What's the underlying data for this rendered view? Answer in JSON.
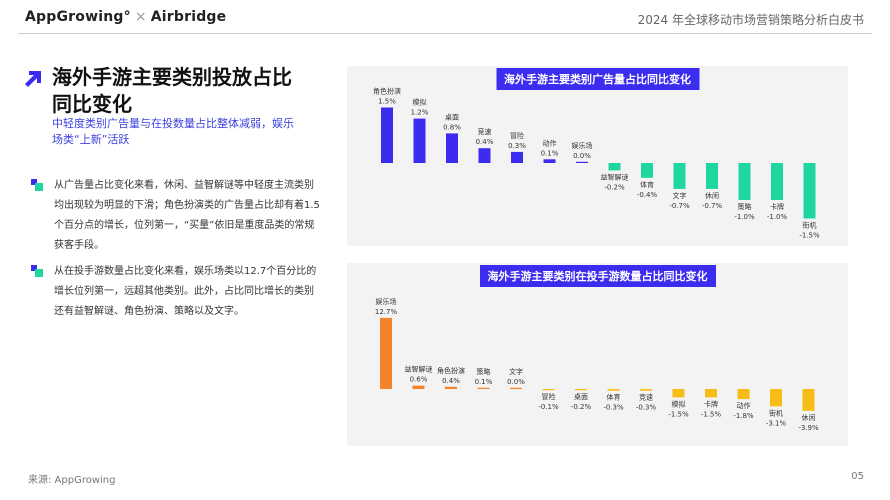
{
  "header": {
    "brand_left": "AppGrowing°",
    "brand_sep": "×",
    "brand_right": "Airbridge",
    "doc_title": "2024 年全球移动市场营销策略分析白皮书"
  },
  "section": {
    "title": "海外手游主要类别投放占比同比变化",
    "subtitle": "中轻度类别广告量与在投数量占比整体减弱，娱乐场类“上新”活跃"
  },
  "bullets": [
    {
      "text": "从广告量占比变化来看，休闲、益智解谜等中轻度主流类别均出现较为明显的下滑；角色扮演类的广告量占比却有着1.5个百分点的增长，位列第一，“买量”依旧是重度品类的常规获客手段。"
    },
    {
      "text": "从在投手游数量占比变化来看，娱乐场类以12.7个百分比的增长位列第一，远超其他类别。此外，占比同比增长的类别还有益智解谜、角色扮演、策略以及文字。"
    }
  ],
  "colors": {
    "accent": "#3b2cf0",
    "pos1": "#3b2cf0",
    "neg1": "#1dd6a0",
    "pos2": "#f0832b",
    "neg2": "#f5bd15",
    "panel_bg": "#f3f3f3"
  },
  "chart_data": [
    {
      "type": "bar",
      "title": "海外手游主要类别广告量占比同比变化",
      "categories": [
        "角色扮演",
        "模拟",
        "桌面",
        "竞速",
        "冒险",
        "动作",
        "娱乐场",
        "益智解谜",
        "体育",
        "文字",
        "休闲",
        "策略",
        "卡牌",
        "街机"
      ],
      "values": [
        1.5,
        1.2,
        0.8,
        0.4,
        0.3,
        0.1,
        0.0,
        -0.2,
        -0.4,
        -0.7,
        -0.7,
        -1.0,
        -1.0,
        -1.5
      ],
      "labels": [
        "1.5%",
        "1.2%",
        "0.8%",
        "0.4%",
        "0.3%",
        "0.1%",
        "0.0%",
        "-0.2%",
        "-0.4%",
        "-0.7%",
        "-0.7%",
        "-1.0%",
        "-1.0%",
        "-1.5%"
      ],
      "ylim": [
        -1.5,
        1.5
      ]
    },
    {
      "type": "bar",
      "title": "海外手游主要类别在投手游数量占比同比变化",
      "categories": [
        "娱乐场",
        "益智解谜",
        "角色扮演",
        "策略",
        "文字",
        "冒险",
        "桌面",
        "体育",
        "竞速",
        "模拟",
        "卡牌",
        "动作",
        "街机",
        "休闲"
      ],
      "values": [
        12.7,
        0.6,
        0.4,
        0.1,
        0.0,
        -0.1,
        -0.2,
        -0.3,
        -0.3,
        -1.5,
        -1.5,
        -1.8,
        -3.1,
        -3.9
      ],
      "labels": [
        "12.7%",
        "0.6%",
        "0.4%",
        "0.1%",
        "0.0%",
        "-0.1%",
        "-0.2%",
        "-0.3%",
        "-0.3%",
        "-1.5%",
        "-1.5%",
        "-1.8%",
        "-3.1%",
        "-3.9%"
      ],
      "ylim": [
        -3.9,
        12.7
      ]
    }
  ],
  "footer": {
    "source": "来源: AppGrowing",
    "page": "05"
  }
}
